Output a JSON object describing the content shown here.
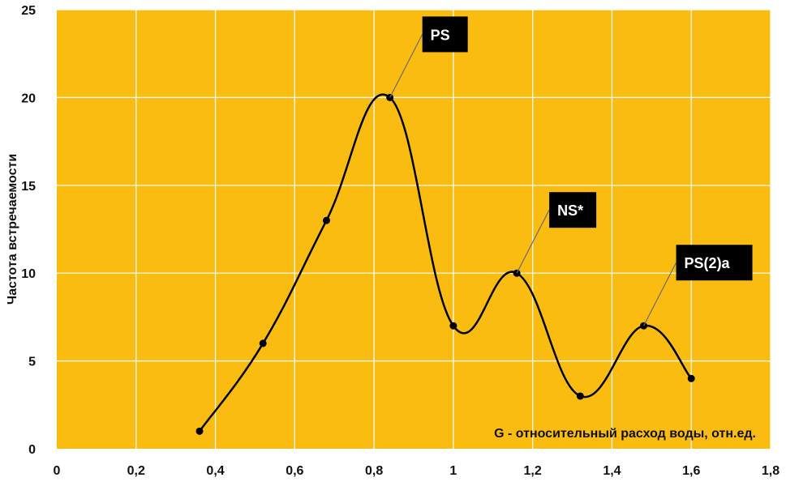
{
  "chart_data": {
    "type": "line",
    "smooth": true,
    "xlabel": "G - относительный расход воды, отн.ед.",
    "ylabel": "Частота встречаемости",
    "xlim": [
      0,
      1.8
    ],
    "ylim": [
      0,
      25
    ],
    "x_ticks": [
      "0",
      "0,2",
      "0,4",
      "0,6",
      "0,8",
      "1",
      "1,2",
      "1,4",
      "1,6",
      "1,8"
    ],
    "y_ticks": [
      "0",
      "5",
      "10",
      "15",
      "20",
      "25"
    ],
    "grid": true,
    "series": [
      {
        "x": [
          0.36,
          0.52,
          0.68,
          0.84,
          1.0,
          1.16,
          1.32,
          1.48,
          1.6
        ],
        "y": [
          1,
          6,
          13,
          20,
          7,
          10,
          3,
          7,
          4
        ]
      }
    ],
    "annotations": [
      {
        "text": "PS",
        "x": 0.84,
        "y": 20
      },
      {
        "text": "NS*",
        "x": 1.16,
        "y": 10
      },
      {
        "text": "PS(2)a",
        "x": 1.48,
        "y": 7
      }
    ],
    "colors": {
      "plot_background": "#FBBC12",
      "line": "#000000",
      "grid": "#ffffff",
      "annotation_box": "#000000",
      "annotation_text": "#ffffff"
    }
  }
}
